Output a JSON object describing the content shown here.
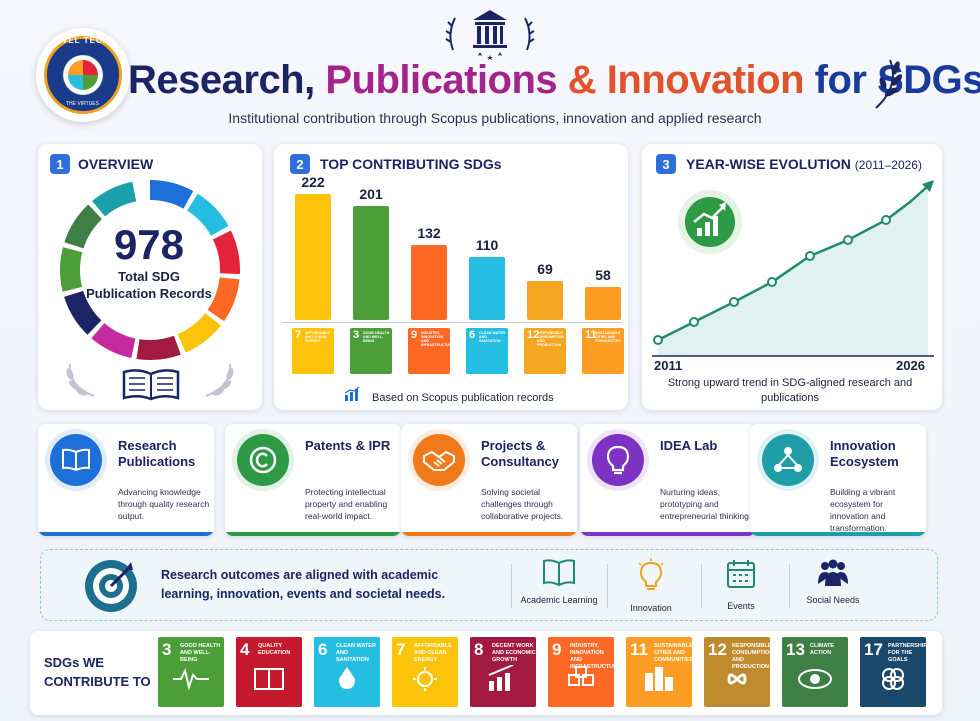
{
  "header": {
    "logo_text_top": "VEL TECH",
    "logo_text_bottom": "THE VIRTUES",
    "title_part1": "Research,",
    "title_part2": "Publications",
    "title_part3": "& Innovation",
    "title_part4": "for SDGs",
    "subtitle": "Institutional contribution through Scopus publications, innovation and applied research"
  },
  "overview": {
    "number": "1",
    "title": "OVERVIEW",
    "total": "978",
    "label": "Total SDG Publication Records"
  },
  "top_sdgs": {
    "number": "2",
    "title": "TOP CONTRIBUTING SDGs",
    "footnote": "Based on Scopus publication records"
  },
  "chart_data": {
    "type": "bar",
    "categories": [
      "7 Affordable and Clean Energy",
      "3 Good Health and Well-Being",
      "9 Industry, Innovation and Infrastructure",
      "6 Clean Water and Sanitation",
      "12 Responsible Consumption and Production",
      "11 Sustainable Cities and Communities"
    ],
    "values": [
      222,
      201,
      132,
      110,
      69,
      58
    ],
    "colors": [
      "#fcc30b",
      "#4c9f38",
      "#fd6925",
      "#26bde2",
      "#f5a623",
      "#fd9d24"
    ],
    "title": "TOP CONTRIBUTING SDGs",
    "xlabel": "",
    "ylabel": "",
    "ylim": [
      0,
      240
    ],
    "grid": false
  },
  "evolution": {
    "number": "3",
    "title": "YEAR-WISE EVOLUTION",
    "range": "(2011–2026)",
    "start_year": "2011",
    "end_year": "2026",
    "caption": "Strong upward trend in SDG-aligned research and publications"
  },
  "features": [
    {
      "title": "Research Publications",
      "desc": "Advancing knowledge through quality research output.",
      "color": "#1e6fd9",
      "icon": "book-icon"
    },
    {
      "title": "Patents & IPR",
      "desc": "Protecting intellectual property and enabling real-world impact.",
      "color": "#2e9a45",
      "icon": "copyright-icon"
    },
    {
      "title": "Projects & Consultancy",
      "desc": "Solving societal challenges through collaborative projects.",
      "color": "#f07a1a",
      "icon": "handshake-icon"
    },
    {
      "title": "IDEA Lab",
      "desc": "Nurturing ideas, prototyping and entrepreneurial thinking.",
      "color": "#7d32c4",
      "icon": "lightbulb-icon"
    },
    {
      "title": "Innovation Ecosystem",
      "desc": "Building a vibrant ecosystem for innovation and transformation.",
      "color": "#1f9ea8",
      "icon": "network-icon"
    }
  ],
  "banner": {
    "text": "Research outcomes are aligned with academic learning, innovation, events and societal needs.",
    "items": [
      {
        "label": "Academic Learning",
        "icon": "open-book-icon"
      },
      {
        "label": "Innovation",
        "icon": "lightbulb-icon"
      },
      {
        "label": "Events",
        "icon": "calendar-icon"
      },
      {
        "label": "Social Needs",
        "icon": "people-icon"
      }
    ]
  },
  "sdg_row": {
    "label": "SDGs WE CONTRIBUTE TO",
    "tiles": [
      {
        "n": "3",
        "t": "Good Health and Well-Being",
        "color": "#4c9f38"
      },
      {
        "n": "4",
        "t": "Quality Education",
        "color": "#c5192d"
      },
      {
        "n": "6",
        "t": "Clean Water and Sanitation",
        "color": "#26bde2"
      },
      {
        "n": "7",
        "t": "Affordable and Clean Energy",
        "color": "#fcc30b"
      },
      {
        "n": "8",
        "t": "Decent Work and Economic Growth",
        "color": "#a21942"
      },
      {
        "n": "9",
        "t": "Industry, Innovation and Infrastructure",
        "color": "#fd6925"
      },
      {
        "n": "11",
        "t": "Sustainable Cities and Communities",
        "color": "#fd9d24"
      },
      {
        "n": "12",
        "t": "Responsible Consumption and Production",
        "color": "#bf8b2e"
      },
      {
        "n": "13",
        "t": "Climate Action",
        "color": "#3f7e44"
      },
      {
        "n": "17",
        "t": "Partnerships for the Goals",
        "color": "#19486a"
      }
    ]
  }
}
